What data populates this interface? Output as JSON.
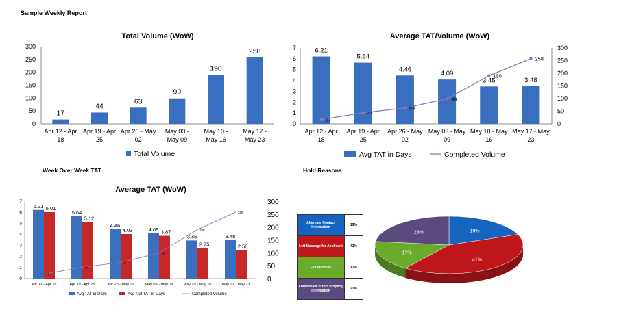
{
  "report": {
    "title": "Sample Weekly Report",
    "wow_section": "Week Over Week TAT",
    "hold_section": "Hold Reasons"
  },
  "colors": {
    "blue": "#3a6fbf",
    "red": "#c62828",
    "purple": "#8a78b8"
  },
  "chart_data": [
    {
      "id": "total_volume",
      "type": "bar",
      "title": "Total Volume (WoW)",
      "categories": [
        "Apr 12 - Apr 18",
        "Apr 19 - Apr 25",
        "Apr 26 - May 02",
        "May 03 - May 09",
        "May 10 - May 16",
        "May 17 - May 23"
      ],
      "category_lines": [
        [
          "Apr 12 - Apr",
          "18"
        ],
        [
          "Apr 19 - Apr",
          "25"
        ],
        [
          "Apr 26 - May",
          "02"
        ],
        [
          "May 03 -",
          "May 09"
        ],
        [
          "May 10 -",
          "May 16"
        ],
        [
          "May 17 -",
          "May 23"
        ]
      ],
      "series": [
        {
          "name": "Total Volume",
          "values": [
            17,
            44,
            63,
            99,
            190,
            258
          ]
        }
      ],
      "ylim": [
        0,
        300
      ],
      "yticks": [
        0,
        50,
        100,
        150,
        200,
        250,
        300
      ],
      "legend": "bottom"
    },
    {
      "id": "avg_tat_volume",
      "type": "bar",
      "title": "Average TAT/Volume (WoW)",
      "categories": [
        "Apr 12 - Apr 18",
        "Apr 19 - Apr 25",
        "Apr 26 - May 02",
        "May 03 - May 09",
        "May 10 - May 16",
        "May 17 - May 23"
      ],
      "category_lines": [
        [
          "Apr 12 - Apr",
          "18"
        ],
        [
          "Apr 19 - Apr",
          "25"
        ],
        [
          "Apr 26 - May",
          "02"
        ],
        [
          "May 03 - May",
          "09"
        ],
        [
          "May 10 - May",
          "16"
        ],
        [
          "May 17 - May",
          "23"
        ]
      ],
      "series": [
        {
          "name": "Avg TAT in Days",
          "type": "bar",
          "axis": "left",
          "values": [
            6.21,
            5.64,
            4.46,
            4.09,
            3.45,
            3.48
          ]
        },
        {
          "name": "Completed Volume",
          "type": "line",
          "axis": "right",
          "values": [
            17,
            44,
            63,
            99,
            190,
            258
          ]
        }
      ],
      "ylim": [
        0,
        7
      ],
      "yticks": [
        0,
        1,
        2,
        3,
        4,
        5,
        6,
        7
      ],
      "y2lim": [
        0,
        300
      ],
      "y2ticks": [
        0,
        50,
        100,
        150,
        200,
        250,
        300
      ],
      "legend": "bottom"
    },
    {
      "id": "average_tat",
      "type": "bar",
      "title": "Average TAT (WoW)",
      "categories": [
        "Apr 12 - Apr 18",
        "Apr 19 - Apr 25",
        "Apr 26 - May 02",
        "May 03 - May 09",
        "May 10 - May 16",
        "May 17 - May 23"
      ],
      "series": [
        {
          "name": "Avg TAT in Days",
          "type": "bar",
          "axis": "left",
          "values": [
            6.21,
            5.64,
            4.46,
            4.09,
            3.45,
            3.48
          ]
        },
        {
          "name": "Avg Net TAT in Days",
          "type": "bar",
          "axis": "left",
          "values": [
            6.01,
            5.12,
            4.03,
            3.87,
            2.75,
            2.56
          ]
        },
        {
          "name": "Completed Volume",
          "type": "line",
          "axis": "right",
          "values": [
            17,
            44,
            63,
            99,
            190,
            258
          ]
        }
      ],
      "ylim": [
        0,
        7
      ],
      "yticks": [
        0,
        1,
        2,
        3,
        4,
        5,
        6,
        7
      ],
      "y2lim": [
        0,
        300
      ],
      "y2ticks": [
        0,
        50,
        100,
        150,
        200,
        250,
        300
      ],
      "legend": "bottom"
    },
    {
      "id": "hold_reasons",
      "type": "pie",
      "labels": [
        "Alternate Contact Information",
        "Left Massage for Applicant",
        "Fee Increase",
        "Additional/Correct Property Information"
      ],
      "values": [
        19,
        41,
        17,
        23
      ],
      "value_labels": [
        "19%",
        "41%",
        "17%",
        "23%"
      ],
      "colors": [
        "#1565c0",
        "#c0171c",
        "#6aab2b",
        "#5b4a7e"
      ],
      "legend": "left"
    }
  ]
}
